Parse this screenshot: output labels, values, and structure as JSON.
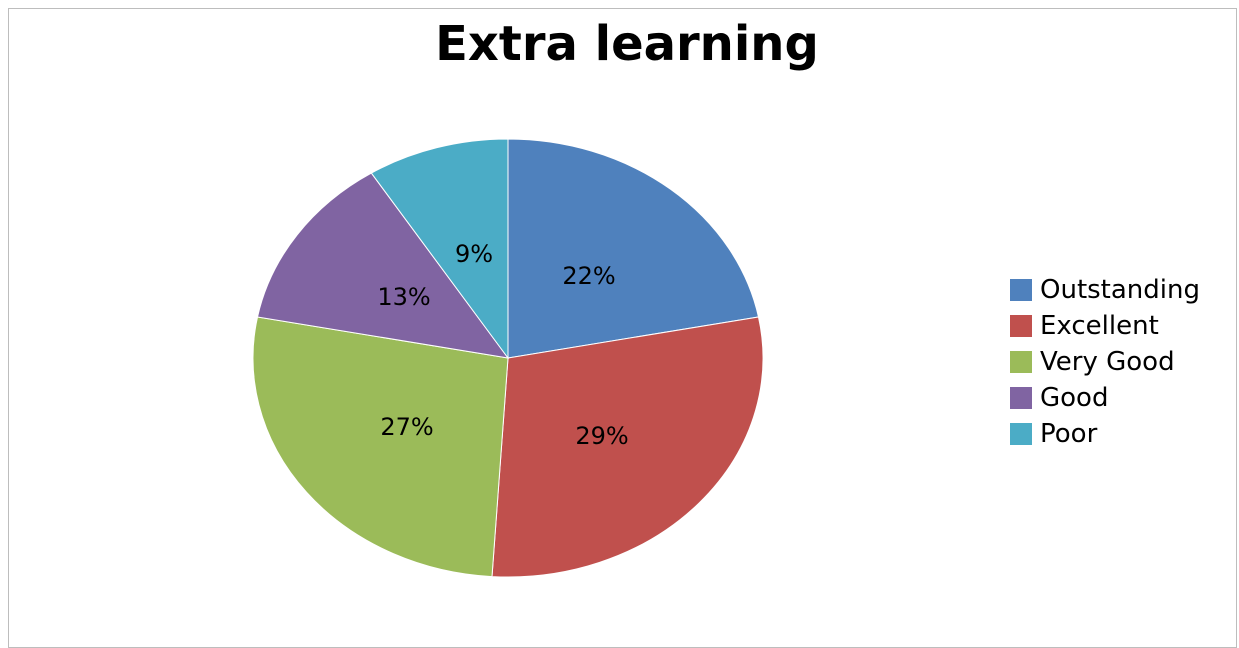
{
  "chart_data": {
    "type": "pie",
    "title": "Extra learning",
    "categories": [
      "Outstanding",
      "Excellent",
      "Very Good",
      "Good",
      "Poor"
    ],
    "values": [
      22,
      29,
      27,
      13,
      9
    ],
    "labels": [
      "22%",
      "29%",
      "27%",
      "13%",
      "9%"
    ],
    "colors": [
      "#4F81BD",
      "#C0504D",
      "#9BBB59",
      "#8064A2",
      "#4BACC6"
    ],
    "legend": "right"
  }
}
